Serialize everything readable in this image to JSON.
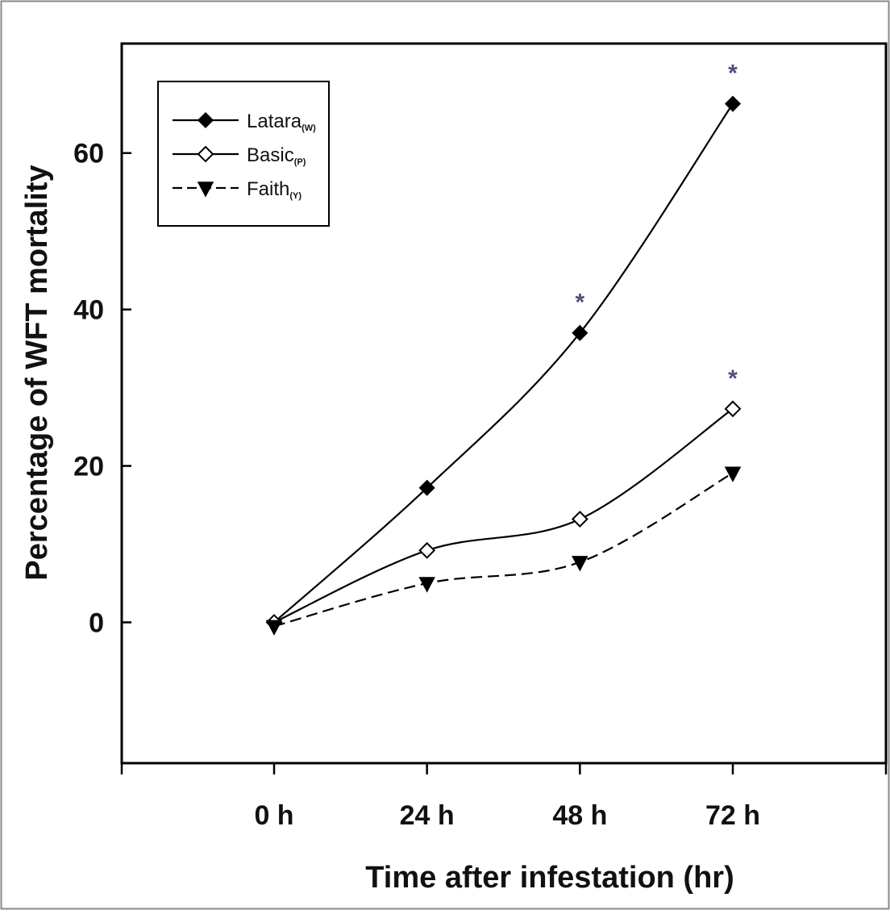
{
  "chart_data": {
    "type": "line",
    "xlabel": "Time after infestation (hr)",
    "ylabel": "Percentage of WFT mortality",
    "categories": [
      "0 h",
      "24 h",
      "48 h",
      "72 h"
    ],
    "ylim": [
      -18,
      74
    ],
    "yticks": [
      0,
      20,
      40,
      60
    ],
    "ytick_labels": [
      "0",
      "20",
      "40",
      "60"
    ],
    "grid": false,
    "legend_position": "top-left",
    "series": [
      {
        "name": "Latara",
        "subscript": "(W)",
        "values": [
          0,
          17.2,
          37,
          66.3
        ],
        "marker": "filled-diamond",
        "line_style": "solid",
        "significance": [
          "",
          "",
          "*",
          "*"
        ]
      },
      {
        "name": "Basic",
        "subscript": "(P)",
        "values": [
          0,
          9.2,
          13.2,
          27.3
        ],
        "marker": "open-diamond",
        "line_style": "solid",
        "significance": [
          "",
          "",
          "",
          "*"
        ]
      },
      {
        "name": "Faith",
        "subscript": "(Y)",
        "values": [
          -0.5,
          5,
          7.7,
          19.1
        ],
        "marker": "filled-triangle-down",
        "line_style": "dashed",
        "significance": [
          "",
          "",
          "",
          ""
        ]
      }
    ],
    "colors": {
      "line": "#000000",
      "significance": "#5b4a7a"
    }
  }
}
